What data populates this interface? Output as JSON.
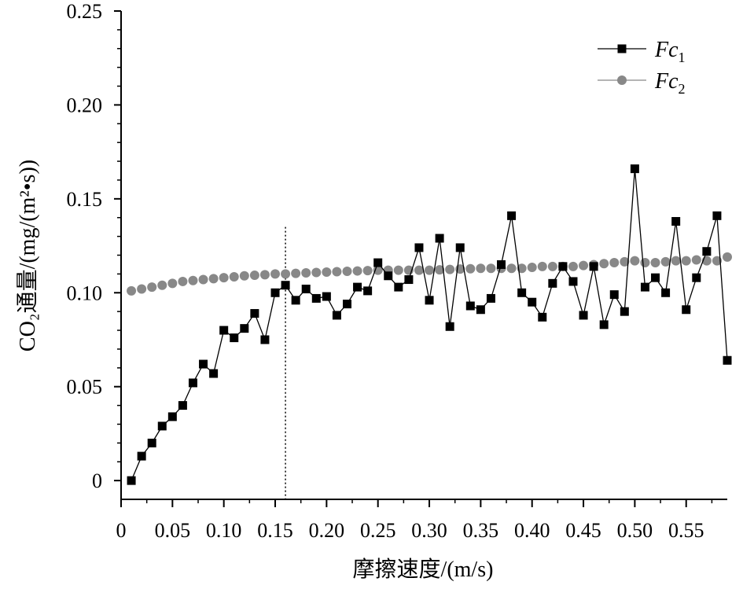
{
  "chart_data": {
    "type": "line",
    "xlabel": "摩擦速度/(m/s)",
    "ylabel": "CO₂通量/(mg/(m²•s))",
    "xlim": [
      0,
      0.59
    ],
    "ylim": [
      -0.01,
      0.25
    ],
    "x_ticks": [
      0,
      0.05,
      0.1,
      0.15,
      0.2,
      0.25,
      0.3,
      0.35,
      0.4,
      0.45,
      0.5,
      0.55
    ],
    "x_tick_labels": [
      "0",
      "0.05",
      "0.10",
      "0.15",
      "0.20",
      "0.25",
      "0.30",
      "0.35",
      "0.40",
      "0.45",
      "0.50",
      "0.55"
    ],
    "y_ticks": [
      0,
      0.05,
      0.1,
      0.15,
      0.2,
      0.25
    ],
    "y_tick_labels": [
      "0",
      "0.05",
      "0.10",
      "0.15",
      "0.20",
      "0.25"
    ],
    "reference_line_x": 0.16,
    "legend_position": "top-right",
    "grid": false,
    "series": [
      {
        "name": "Fc₁",
        "legend_main": "Fc",
        "legend_sub": "1",
        "color": "#000000",
        "marker": "square",
        "x": [
          0.01,
          0.02,
          0.03,
          0.04,
          0.05,
          0.06,
          0.07,
          0.08,
          0.09,
          0.1,
          0.11,
          0.12,
          0.13,
          0.14,
          0.15,
          0.16,
          0.17,
          0.18,
          0.19,
          0.2,
          0.21,
          0.22,
          0.23,
          0.24,
          0.25,
          0.26,
          0.27,
          0.28,
          0.29,
          0.3,
          0.31,
          0.32,
          0.33,
          0.34,
          0.35,
          0.36,
          0.37,
          0.38,
          0.39,
          0.4,
          0.41,
          0.42,
          0.43,
          0.44,
          0.45,
          0.46,
          0.47,
          0.48,
          0.49,
          0.5,
          0.51,
          0.52,
          0.53,
          0.54,
          0.55,
          0.56,
          0.57,
          0.58,
          0.59
        ],
        "y": [
          0.0,
          0.013,
          0.02,
          0.029,
          0.034,
          0.04,
          0.052,
          0.062,
          0.057,
          0.08,
          0.076,
          0.081,
          0.089,
          0.075,
          0.1,
          0.104,
          0.096,
          0.102,
          0.097,
          0.098,
          0.088,
          0.094,
          0.103,
          0.101,
          0.116,
          0.109,
          0.103,
          0.107,
          0.124,
          0.096,
          0.129,
          0.082,
          0.124,
          0.093,
          0.091,
          0.097,
          0.115,
          0.141,
          0.1,
          0.095,
          0.087,
          0.105,
          0.114,
          0.106,
          0.088,
          0.114,
          0.083,
          0.099,
          0.09,
          0.166,
          0.103,
          0.108,
          0.1,
          0.138,
          0.091,
          0.108,
          0.122,
          0.141,
          0.064
        ]
      },
      {
        "name": "Fc₂",
        "legend_main": "Fc",
        "legend_sub": "2",
        "color": "#888888",
        "marker": "circle",
        "x": [
          0.01,
          0.02,
          0.03,
          0.04,
          0.05,
          0.06,
          0.07,
          0.08,
          0.09,
          0.1,
          0.11,
          0.12,
          0.13,
          0.14,
          0.15,
          0.16,
          0.17,
          0.18,
          0.19,
          0.2,
          0.21,
          0.22,
          0.23,
          0.24,
          0.25,
          0.26,
          0.27,
          0.28,
          0.29,
          0.3,
          0.31,
          0.32,
          0.33,
          0.34,
          0.35,
          0.36,
          0.37,
          0.38,
          0.39,
          0.4,
          0.41,
          0.42,
          0.43,
          0.44,
          0.45,
          0.46,
          0.47,
          0.48,
          0.49,
          0.5,
          0.51,
          0.52,
          0.53,
          0.54,
          0.55,
          0.56,
          0.57,
          0.58,
          0.59
        ],
        "y": [
          0.101,
          0.102,
          0.103,
          0.104,
          0.105,
          0.106,
          0.1065,
          0.107,
          0.1075,
          0.108,
          0.1085,
          0.109,
          0.1093,
          0.1096,
          0.11,
          0.11,
          0.1103,
          0.1106,
          0.1108,
          0.111,
          0.1112,
          0.1114,
          0.1116,
          0.1118,
          0.112,
          0.112,
          0.112,
          0.112,
          0.112,
          0.112,
          0.1122,
          0.1124,
          0.1126,
          0.1128,
          0.113,
          0.113,
          0.113,
          0.113,
          0.113,
          0.1135,
          0.114,
          0.114,
          0.114,
          0.114,
          0.1145,
          0.115,
          0.1155,
          0.116,
          0.1165,
          0.117,
          0.116,
          0.116,
          0.1165,
          0.117,
          0.117,
          0.1175,
          0.117,
          0.117,
          0.119
        ]
      }
    ]
  }
}
